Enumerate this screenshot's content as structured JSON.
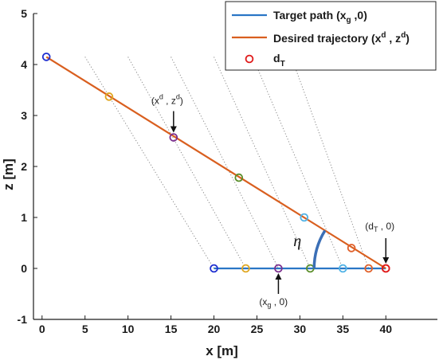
{
  "chart_data": {
    "type": "line",
    "xlabel": "x [m]",
    "ylabel": "z [m]",
    "xlim": [
      -1,
      46
    ],
    "ylim": [
      -1,
      5
    ],
    "xticks": [
      "0",
      "5",
      "10",
      "15",
      "20",
      "25",
      "30",
      "35",
      "40"
    ],
    "yticks": [
      "-1",
      "0",
      "1",
      "2",
      "3",
      "4",
      "5"
    ],
    "grid": false,
    "legend_position": "top-right",
    "legend": {
      "target": {
        "text": "Target path (x",
        "sub": "g",
        "tail": " ,0)"
      },
      "desired": {
        "text": "Desired trajectory (x",
        "sup1": "d",
        "mid": " , z",
        "sup2": "d",
        "tail": ")"
      },
      "dt": {
        "text": "d",
        "sub": "T"
      }
    },
    "series": [
      {
        "name": "Target path (xg ,0)",
        "color": "#2a76c6",
        "x": [
          20,
          40
        ],
        "y": [
          0,
          0
        ]
      },
      {
        "name": "Desired trajectory (xd , zd)",
        "color": "#d95f1f",
        "x": [
          0.5,
          40
        ],
        "y": [
          4.15,
          0
        ]
      }
    ],
    "target_points": {
      "x": [
        20,
        23.7,
        27.5,
        31.2,
        35,
        38,
        40
      ],
      "colors": [
        "#1f2fd0",
        "#e0a722",
        "#7b2f8e",
        "#5a8e2a",
        "#4fb2e6",
        "#e0602a",
        "#e01b1b"
      ]
    },
    "trajectory_points": {
      "x": [
        0.5,
        7.8,
        15.3,
        22.9,
        30.5,
        36,
        40
      ],
      "y": [
        4.15,
        3.37,
        2.57,
        1.78,
        1.0,
        0.4,
        0
      ],
      "colors": [
        "#1f2fd0",
        "#e0a722",
        "#7b2f8e",
        "#5a8e2a",
        "#4fb2e6",
        "#e0602a",
        "#e01b1b"
      ]
    },
    "dotted_lines": {
      "top_x": [
        5,
        10,
        15,
        20,
        24.5,
        29
      ],
      "top_y": [
        4.15,
        4.15,
        4.15,
        4.15,
        4.15,
        4.15
      ],
      "bottom_x": [
        20,
        23.7,
        27.5,
        31.2,
        35,
        38
      ],
      "bottom_y": [
        0,
        0,
        0,
        0,
        0,
        0
      ]
    },
    "annotations": {
      "xd_zd": {
        "base1": "(x",
        "sup1": "d",
        "mid": " , z",
        "sup2": "d",
        "tail": ")"
      },
      "xg_0": {
        "base": "(x",
        "sub": "g",
        "tail": " , 0)"
      },
      "dt_0": {
        "base": "(d",
        "sub": "T",
        "tail": " , 0)"
      },
      "eta": "η"
    },
    "colors": {
      "target": "#2a76c6",
      "desired": "#d95f1f",
      "dt_marker": "#e01b1b",
      "axis": "#1a1a1a",
      "dotted": "#8a8a8a",
      "arc": "#3b6fb6"
    }
  }
}
